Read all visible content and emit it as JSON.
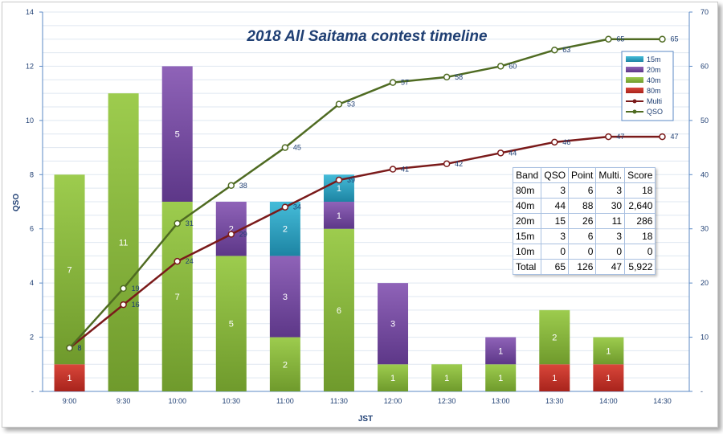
{
  "chart_data": {
    "type": "bar",
    "title": "2018 All Saitama contest timeline",
    "xlabel": "JST",
    "ylabel": "QSO",
    "ylim": [
      0,
      14
    ],
    "y2lim": [
      0,
      70
    ],
    "y_ticks": [
      "-",
      "2",
      "4",
      "6",
      "8",
      "10",
      "12",
      "14"
    ],
    "y2_ticks": [
      "-",
      "10",
      "20",
      "30",
      "40",
      "50",
      "60",
      "70"
    ],
    "categories": [
      "9:00",
      "9:30",
      "10:00",
      "10:30",
      "11:00",
      "11:30",
      "12:00",
      "12:30",
      "13:00",
      "13:30",
      "14:00",
      "14:30"
    ],
    "stacked": true,
    "grid": true,
    "legend_position": "top-right",
    "series": [
      {
        "name": "80m",
        "type": "bar",
        "axis": "left",
        "color": "#c0392b",
        "values": [
          1,
          0,
          0,
          0,
          0,
          0,
          0,
          0,
          0,
          1,
          1,
          0
        ]
      },
      {
        "name": "40m",
        "type": "bar",
        "axis": "left",
        "color": "#8cbf3f",
        "values": [
          7,
          11,
          7,
          5,
          2,
          6,
          1,
          1,
          1,
          2,
          1,
          0
        ]
      },
      {
        "name": "20m",
        "type": "bar",
        "axis": "left",
        "color": "#7b4fa6",
        "values": [
          0,
          0,
          5,
          2,
          3,
          1,
          3,
          0,
          1,
          0,
          0,
          0
        ]
      },
      {
        "name": "15m",
        "type": "bar",
        "axis": "left",
        "color": "#2ba3c4",
        "values": [
          0,
          0,
          0,
          0,
          2,
          1,
          0,
          0,
          0,
          0,
          0,
          0
        ]
      },
      {
        "name": "Multi",
        "type": "line",
        "axis": "right",
        "color": "#7a1a1a",
        "values": [
          8,
          16,
          24,
          29,
          34,
          39,
          41,
          42,
          44,
          46,
          47,
          47
        ]
      },
      {
        "name": "QSO",
        "type": "line",
        "axis": "right",
        "color": "#4f6b22",
        "values": [
          8,
          19,
          31,
          38,
          45,
          53,
          57,
          58,
          60,
          63,
          65,
          65
        ]
      }
    ],
    "legend_order": [
      "15m",
      "20m",
      "40m",
      "80m",
      "Multi",
      "QSO"
    ]
  },
  "score_table": {
    "headers": [
      "Band",
      "QSO",
      "Point",
      "Multi.",
      "Score"
    ],
    "rows": [
      [
        "80m",
        "3",
        "6",
        "3",
        "18"
      ],
      [
        "40m",
        "44",
        "88",
        "30",
        "2,640"
      ],
      [
        "20m",
        "15",
        "26",
        "11",
        "286"
      ],
      [
        "15m",
        "3",
        "6",
        "3",
        "18"
      ],
      [
        "10m",
        "0",
        "0",
        "0",
        "0"
      ]
    ],
    "total": [
      "Total",
      "65",
      "126",
      "47",
      "5,922"
    ]
  }
}
